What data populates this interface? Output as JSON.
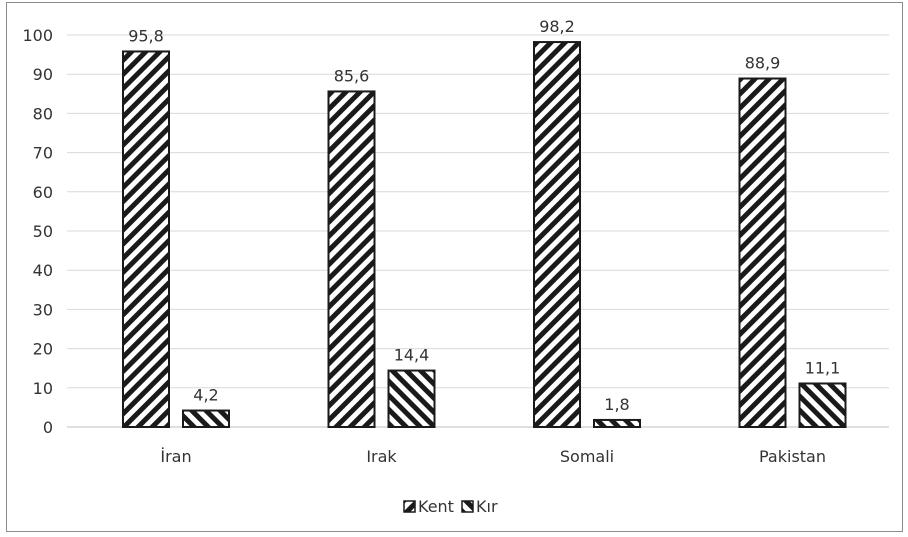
{
  "chart_data": {
    "type": "bar",
    "categories": [
      "İran",
      "Irak",
      "Somali",
      "Pakistan"
    ],
    "series": [
      {
        "name": "Kent",
        "values": [
          95.8,
          85.6,
          98.2,
          88.9
        ],
        "labels": [
          "95,8",
          "85,6",
          "98,2",
          "88,9"
        ],
        "pattern": "diagonal-hatch-backslash"
      },
      {
        "name": "Kır",
        "values": [
          4.2,
          14.4,
          1.8,
          11.1
        ],
        "labels": [
          "4,2",
          "14,4",
          "1,8",
          "11,1"
        ],
        "pattern": "diagonal-hatch-slash"
      }
    ],
    "yticks": [
      "0",
      "10",
      "20",
      "30",
      "40",
      "50",
      "60",
      "70",
      "80",
      "90",
      "100"
    ],
    "ylim": [
      0,
      100
    ],
    "grid": true,
    "legend": "bottom-center",
    "colors": {
      "bar_stroke": "#1a1a1a",
      "hatch": "#1a1a1a",
      "grid": "#d9d9d9",
      "text": "#333333"
    }
  }
}
